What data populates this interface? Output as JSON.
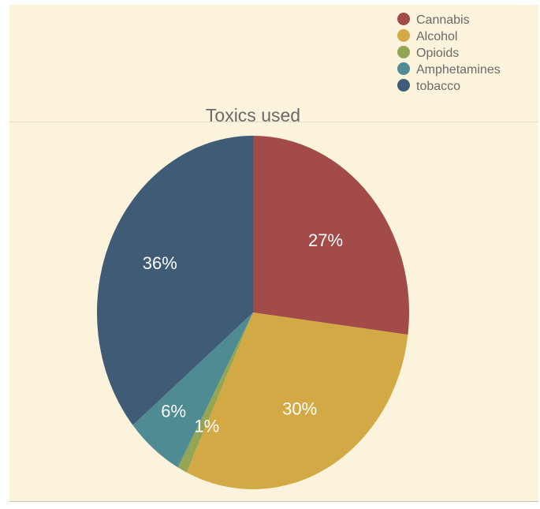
{
  "chart_data": {
    "type": "pie",
    "title": "Toxics used",
    "legend_position": "top-right",
    "categories": [
      "Cannabis",
      "Alcohol",
      "Opioids",
      "Amphetamines",
      "tobacco"
    ],
    "values": [
      27,
      30,
      1,
      6,
      36
    ],
    "value_labels": [
      "27%",
      "30%",
      "1%",
      "6%",
      "36%"
    ],
    "colors": [
      "#a24b48",
      "#d2a944",
      "#94a656",
      "#4f8b92",
      "#3f5b76"
    ]
  }
}
